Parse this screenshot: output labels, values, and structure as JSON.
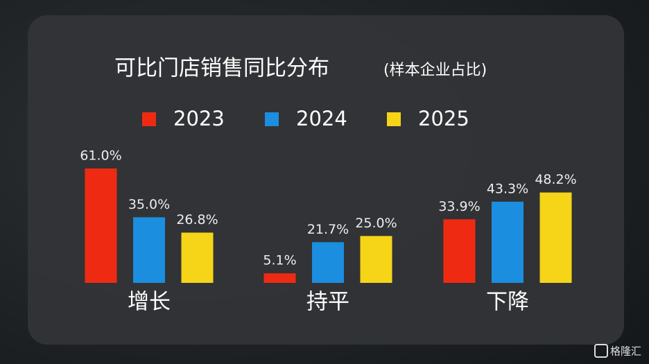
{
  "chart_data": {
    "type": "bar",
    "title": "可比门店销售同比分布",
    "subtitle": "(样本企业占比)",
    "categories": [
      "增长",
      "持平",
      "下降"
    ],
    "series": [
      {
        "name": "2023",
        "color": "#ee2b12",
        "values": [
          61.0,
          5.1,
          33.9
        ],
        "value_labels": [
          "61.0%",
          "5.1%",
          "33.9%"
        ]
      },
      {
        "name": "2024",
        "color": "#1b8ee0",
        "values": [
          35.0,
          21.7,
          43.3
        ],
        "value_labels": [
          "35.0%",
          "21.7%",
          "43.3%"
        ]
      },
      {
        "name": "2025",
        "color": "#f6d418",
        "values": [
          26.8,
          25.0,
          48.2
        ],
        "value_labels": [
          "26.8%",
          "25.0%",
          "48.2%"
        ]
      }
    ],
    "legend": "top"
  },
  "watermark": "格隆汇"
}
